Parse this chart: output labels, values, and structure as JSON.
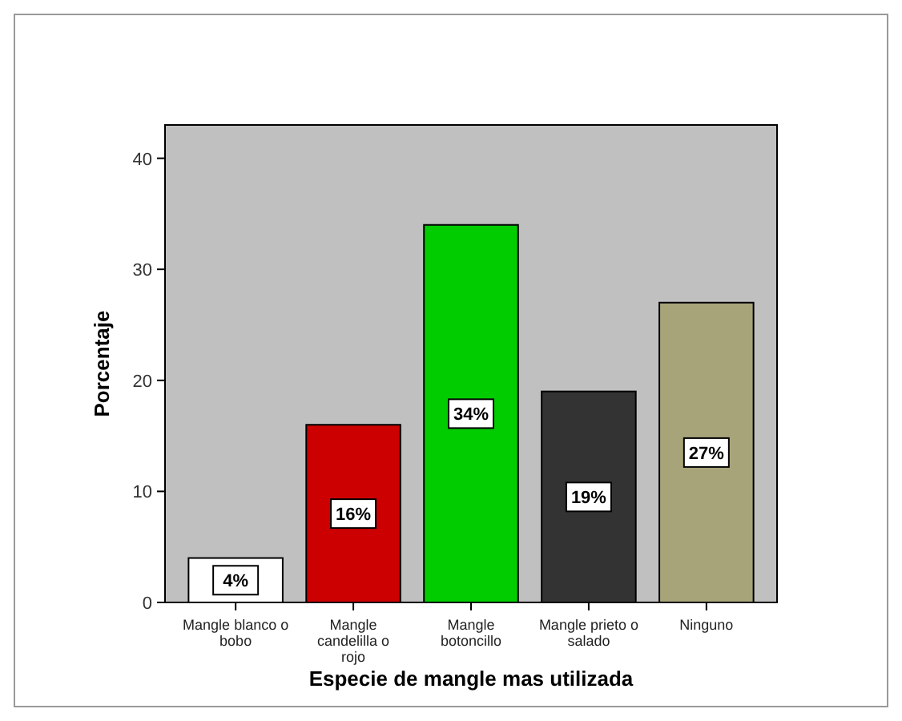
{
  "chart_data": {
    "type": "bar",
    "xlabel": "Especie de mangle mas utilizada",
    "ylabel": "Porcentaje",
    "categories": [
      "Mangle blanco o bobo",
      "Mangle candelilla o rojo",
      "Mangle botoncillo",
      "Mangle prieto o salado",
      "Ninguno"
    ],
    "values": [
      4,
      16,
      34,
      19,
      27
    ],
    "colors": [
      "#ffffff",
      "#cc0000",
      "#00cc00",
      "#333333",
      "#a8a47a"
    ],
    "value_labels": [
      "4%",
      "16%",
      "34%",
      "19%",
      "27%"
    ],
    "ylim": [
      0,
      43
    ],
    "yticks": [
      0,
      10,
      20,
      30,
      40
    ],
    "grid": false
  }
}
